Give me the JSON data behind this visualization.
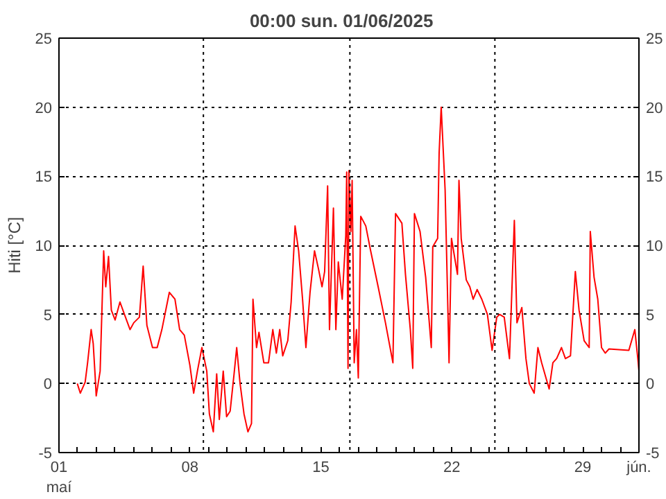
{
  "chart_data": {
    "type": "line",
    "title": "00:00   sun.  01/06/2025",
    "ylabel": "Hiti [°C]",
    "x": [
      1.98,
      2.14,
      2.4,
      2.53,
      2.72,
      2.83,
      2.94,
      2.99,
      3.2,
      3.39,
      3.5,
      3.65,
      3.8,
      4.0,
      4.26,
      4.5,
      4.8,
      5.0,
      5.3,
      5.5,
      5.7,
      6.0,
      6.25,
      6.5,
      6.9,
      7.2,
      7.45,
      7.7,
      8.0,
      8.2,
      8.4,
      8.64,
      8.9,
      9.04,
      9.25,
      9.43,
      9.57,
      9.78,
      9.96,
      10.15,
      10.36,
      10.5,
      10.68,
      10.89,
      11.1,
      11.29,
      11.37,
      11.56,
      11.69,
      11.95,
      12.2,
      12.43,
      12.62,
      12.8,
      12.96,
      13.23,
      13.41,
      13.62,
      13.81,
      14.02,
      14.2,
      14.42,
      14.66,
      14.87,
      15.06,
      15.2,
      15.36,
      15.46,
      15.67,
      15.8,
      15.93,
      16.14,
      16.33,
      16.38,
      16.45,
      16.5,
      16.6,
      16.67,
      16.78,
      16.9,
      17.0,
      17.13,
      17.4,
      17.66,
      18.06,
      18.45,
      18.85,
      18.99,
      19.33,
      19.52,
      19.78,
      19.91,
      20.0,
      20.3,
      20.6,
      20.9,
      20.98,
      21.24,
      21.32,
      21.43,
      21.64,
      21.77,
      21.85,
      21.98,
      22.3,
      22.38,
      22.5,
      22.77,
      22.96,
      23.14,
      23.35,
      23.6,
      23.9,
      24.15,
      24.4,
      24.55,
      24.8,
      25.08,
      25.34,
      25.48,
      25.74,
      25.96,
      26.14,
      26.4,
      26.6,
      26.8,
      27.2,
      27.4,
      27.6,
      27.86,
      28.07,
      28.34,
      28.6,
      28.8,
      29.07,
      29.34,
      29.4,
      29.6,
      29.8,
      30.0,
      30.2,
      30.4,
      31.46,
      31.78,
      31.94,
      32.0
    ],
    "values": [
      0,
      -0.7,
      0.1,
      1.5,
      3.9,
      2.9,
      0.4,
      -0.9,
      0.9,
      9.6,
      7,
      9.2,
      5.3,
      4.6,
      5.9,
      5,
      3.9,
      4.4,
      4.8,
      8.5,
      4.2,
      2.6,
      2.6,
      3.9,
      6.6,
      6.1,
      3.9,
      3.5,
      1.3,
      -0.7,
      0.9,
      2.6,
      0.9,
      -2.2,
      -3.5,
      0.7,
      -2.6,
      0.9,
      -2.4,
      -2,
      0.7,
      2.6,
      0,
      -2.2,
      -3.5,
      -2.9,
      6.1,
      2.6,
      3.7,
      1.5,
      1.5,
      3.9,
      2.2,
      3.9,
      2,
      3.1,
      5.9,
      11.4,
      9.6,
      6.1,
      2.6,
      6.6,
      9.6,
      8.3,
      7,
      8.1,
      14.3,
      3.9,
      12.7,
      3.9,
      8.8,
      6.1,
      10.7,
      15.3,
      1.1,
      15.4,
      11,
      14.7,
      1.5,
      3.9,
      0.4,
      12.1,
      11.4,
      9.6,
      7,
      4.4,
      1.5,
      12.3,
      11.6,
      7.9,
      3.9,
      1.1,
      12.3,
      11,
      7.7,
      2.6,
      9.9,
      10.5,
      16.7,
      20,
      14,
      6.4,
      1.5,
      10.5,
      7.9,
      14.7,
      10.5,
      7.5,
      7,
      6.1,
      6.8,
      6.1,
      5,
      2.4,
      4.8,
      5,
      4.8,
      1.8,
      11.8,
      4.4,
      5.5,
      1.8,
      0,
      -0.7,
      2.6,
      1.5,
      -0.4,
      1.5,
      1.8,
      2.6,
      1.8,
      2,
      8.1,
      5.3,
      3.1,
      2.6,
      11,
      7.7,
      6.1,
      2.6,
      2.2,
      2.5,
      2.4,
      3.9,
      1.8,
      0.9
    ],
    "color": "#ff0000",
    "line_style": "solid",
    "marker": "none",
    "xlim": [
      1,
      32
    ],
    "xticks": [
      {
        "value": 1,
        "label": "01\nmaí"
      },
      {
        "value": 2,
        "label": null
      },
      {
        "value": 3,
        "label": null
      },
      {
        "value": 4,
        "label": null
      },
      {
        "value": 5,
        "label": null
      },
      {
        "value": 6,
        "label": null
      },
      {
        "value": 7,
        "label": null
      },
      {
        "value": 8,
        "label": "08"
      },
      {
        "value": 9,
        "label": null
      },
      {
        "value": 10,
        "label": null
      },
      {
        "value": 11,
        "label": null
      },
      {
        "value": 12,
        "label": null
      },
      {
        "value": 13,
        "label": null
      },
      {
        "value": 14,
        "label": null
      },
      {
        "value": 15,
        "label": "15"
      },
      {
        "value": 16,
        "label": null
      },
      {
        "value": 17,
        "label": null
      },
      {
        "value": 18,
        "label": null
      },
      {
        "value": 19,
        "label": null
      },
      {
        "value": 20,
        "label": null
      },
      {
        "value": 21,
        "label": null
      },
      {
        "value": 22,
        "label": "22"
      },
      {
        "value": 23,
        "label": null
      },
      {
        "value": 24,
        "label": null
      },
      {
        "value": 25,
        "label": null
      },
      {
        "value": 26,
        "label": null
      },
      {
        "value": 27,
        "label": null
      },
      {
        "value": 28,
        "label": null
      },
      {
        "value": 29,
        "label": "29"
      },
      {
        "value": 30,
        "label": null
      },
      {
        "value": 31,
        "label": null
      },
      {
        "value": 32,
        "label": "jún."
      }
    ],
    "ylim": [
      -5,
      25
    ],
    "yticks": [
      -5,
      0,
      5,
      10,
      15,
      20,
      25
    ],
    "y2lim": [
      -5,
      25
    ],
    "y2ticks": [
      -5,
      0,
      5,
      10,
      15,
      20,
      25
    ],
    "grid": "y",
    "ref_lines": [
      {
        "axis": "x",
        "value": 8.72,
        "label": null,
        "color": "#000000",
        "line_style": "dotted"
      },
      {
        "axis": "x",
        "value": 16.55,
        "label": null,
        "color": "#000000",
        "line_style": "dotted"
      },
      {
        "axis": "x",
        "value": 24.3,
        "label": null,
        "color": "#000000",
        "line_style": "dotted"
      }
    ]
  }
}
